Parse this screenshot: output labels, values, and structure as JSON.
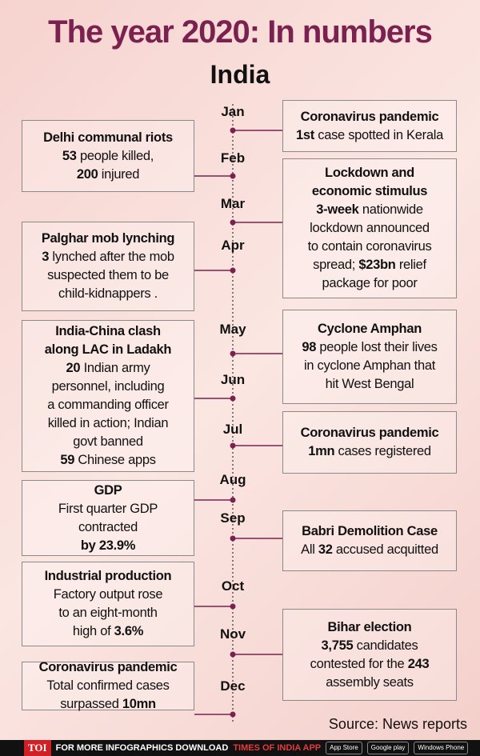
{
  "header": {
    "title": "The year 2020: In numbers",
    "subtitle": "India"
  },
  "months": [
    "Jan",
    "Feb",
    "Mar",
    "Apr",
    "May",
    "Jun",
    "Jul",
    "Aug",
    "Sep",
    "Oct",
    "Nov",
    "Dec"
  ],
  "events": [
    {
      "title": [
        "Coronavirus pandemic"
      ],
      "body": [
        [
          {
            "bold": "1st"
          },
          " case spotted in Kerala"
        ]
      ]
    },
    {
      "title": [
        "Delhi communal riots"
      ],
      "body": [
        [
          {
            "bold": "53"
          },
          " people killed,"
        ],
        [
          {
            "bold": "200"
          },
          " injured"
        ]
      ]
    },
    {
      "title": [
        "Lockdown and",
        "economic stimulus"
      ],
      "body": [
        [
          {
            "bold": "3-week"
          },
          " nationwide"
        ],
        [
          "lockdown announced"
        ],
        [
          "to contain coronavirus"
        ],
        [
          "spread; ",
          {
            "bold": "$23bn"
          },
          " relief"
        ],
        [
          "package for poor"
        ]
      ]
    },
    {
      "title": [
        "Palghar mob lynching"
      ],
      "body": [
        [
          {
            "bold": "3"
          },
          " lynched after the mob"
        ],
        [
          "suspected them to be"
        ],
        [
          "child-kidnappers ."
        ]
      ]
    },
    {
      "title": [
        "Cyclone Amphan"
      ],
      "body": [
        [
          {
            "bold": "98"
          },
          " people lost their lives"
        ],
        [
          "in cyclone Amphan that"
        ],
        [
          "hit West Bengal"
        ]
      ]
    },
    {
      "title": [
        "India-China clash",
        "along LAC in Ladakh"
      ],
      "body": [
        [
          {
            "bold": "20"
          },
          " Indian army"
        ],
        [
          "personnel, including"
        ],
        [
          "a commanding officer"
        ],
        [
          "killed in action; Indian"
        ],
        [
          "govt banned"
        ],
        [
          {
            "bold": "59"
          },
          " Chinese apps"
        ]
      ]
    },
    {
      "title": [
        "Coronavirus pandemic"
      ],
      "body": [
        [
          {
            "bold": "1mn"
          },
          " cases registered"
        ]
      ]
    },
    {
      "title": [
        "GDP"
      ],
      "body": [
        [
          "First quarter GDP"
        ],
        [
          "contracted"
        ],
        [
          {
            "bold": "by 23.9%"
          }
        ]
      ]
    },
    {
      "title": [
        "Babri Demolition Case"
      ],
      "body": [
        [
          "All ",
          {
            "bold": "32"
          },
          " accused acquitted"
        ]
      ]
    },
    {
      "title": [
        "Industrial production"
      ],
      "body": [
        [
          "Factory output rose"
        ],
        [
          "to an eight-month"
        ],
        [
          "high of ",
          {
            "bold": "3.6%"
          }
        ]
      ]
    },
    {
      "title": [
        "Bihar election"
      ],
      "body": [
        [
          {
            "bold": "3,755"
          },
          " candidates"
        ],
        [
          "contested for the ",
          {
            "bold": "243"
          }
        ],
        [
          "assembly seats"
        ]
      ]
    },
    {
      "title": [
        "Coronavirus pandemic"
      ],
      "body": [
        [
          "Total confirmed cases"
        ],
        [
          "surpassed ",
          {
            "bold": "10mn"
          }
        ]
      ]
    }
  ],
  "source": "Source: News reports",
  "footer": {
    "brand": "TOI",
    "prompt": "FOR MORE INFOGRAPHICS DOWNLOAD",
    "app": "TIMES OF INDIA APP",
    "badges": [
      "App Store",
      "Google play",
      "Windows Phone"
    ]
  }
}
